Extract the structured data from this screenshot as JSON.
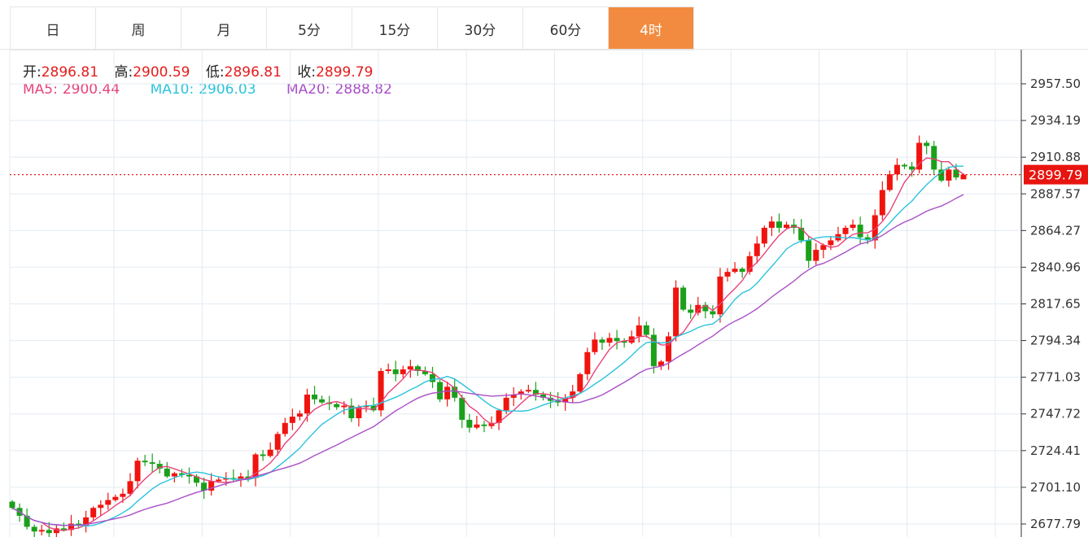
{
  "tabs": [
    "日",
    "周",
    "月",
    "5分",
    "15分",
    "30分",
    "60分",
    "4时"
  ],
  "active_tab": "4时",
  "ohlc": {
    "open_label": "开:",
    "open": "2896.81",
    "high_label": "高:",
    "high": "2900.59",
    "low_label": "低:",
    "low": "2896.81",
    "close_label": "收:",
    "close": "2899.79"
  },
  "ma": {
    "ma5_label": "MA5:",
    "ma5": "2900.44",
    "ma10_label": "MA10:",
    "ma10": "2906.03",
    "ma20_label": "MA20:",
    "ma20": "2888.82"
  },
  "colors": {
    "up": "#f0140f",
    "down": "#1aa01a",
    "ma5": "#e8437a",
    "ma10": "#2bc3dd",
    "ma20": "#aa4fc8",
    "accent": "#f28b3f"
  },
  "chart_data": {
    "type": "candlestick",
    "title": "",
    "y_ticks": [
      "2957.50",
      "2934.19",
      "2910.88",
      "2887.57",
      "2864.27",
      "2840.96",
      "2817.65",
      "2794.34",
      "2771.03",
      "2747.72",
      "2724.41",
      "2701.10",
      "2677.79"
    ],
    "ylim": [
      2677.79,
      2957.5
    ],
    "last_price": "2899.79",
    "grid": true,
    "first_open": 2692,
    "last_candle": {
      "open": 2896.81,
      "high": 2900.59,
      "low": 2896.81,
      "close": 2899.79
    },
    "closes": [
      2688,
      2683,
      2676,
      2673,
      2674,
      2672,
      2675,
      2674,
      2678,
      2677,
      2682,
      2688,
      2690,
      2693,
      2695,
      2697,
      2705,
      2718,
      2717,
      2716,
      2713,
      2708,
      2710,
      2709,
      2708,
      2704,
      2699,
      2705,
      2706,
      2707,
      2706,
      2708,
      2707,
      2722,
      2721,
      2725,
      2735,
      2742,
      2746,
      2748,
      2760,
      2757,
      2755,
      2754,
      2752,
      2753,
      2745,
      2752,
      2753,
      2750,
      2775,
      2776,
      2773,
      2776,
      2778,
      2775,
      2773,
      2768,
      2757,
      2765,
      2758,
      2744,
      2739,
      2741,
      2740,
      2742,
      2750,
      2758,
      2760,
      2762,
      2763,
      2760,
      2758,
      2756,
      2755,
      2758,
      2762,
      2773,
      2787,
      2795,
      2793,
      2796,
      2794,
      2793,
      2797,
      2804,
      2798,
      2778,
      2781,
      2797,
      2828,
      2814,
      2812,
      2817,
      2813,
      2811,
      2835,
      2838,
      2840,
      2838,
      2848,
      2856,
      2866,
      2870,
      2866,
      2868,
      2866,
      2858,
      2845,
      2852,
      2855,
      2858,
      2862,
      2866,
      2868,
      2860,
      2858,
      2874,
      2890,
      2900,
      2906,
      2905,
      2903,
      2920,
      2918,
      2903,
      2896,
      2903,
      2898,
      2899.79
    ]
  }
}
